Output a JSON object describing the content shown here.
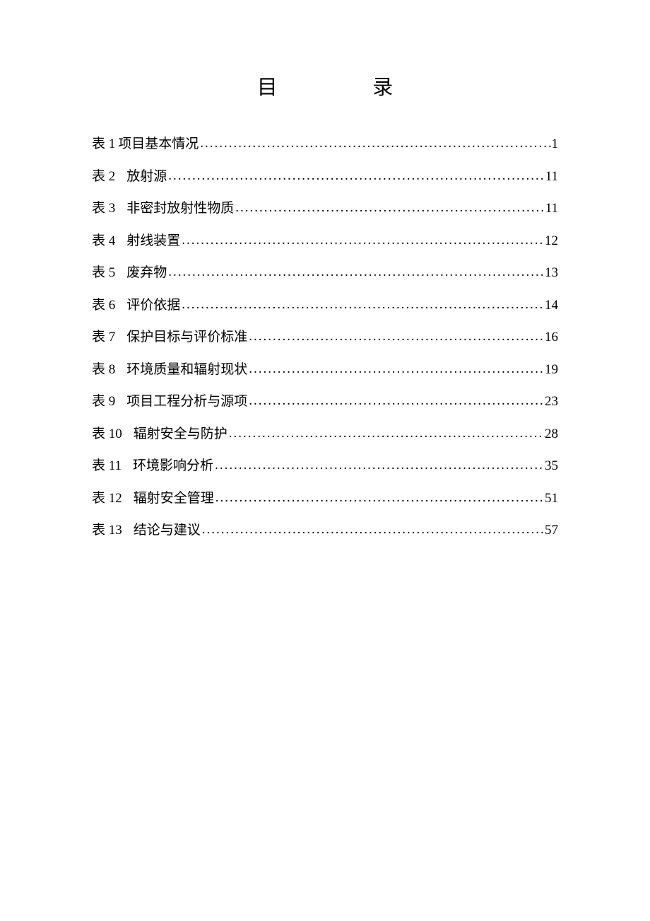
{
  "document": {
    "title_char1": "目",
    "title_char2": "录",
    "background_color": "#ffffff",
    "text_color": "#000000",
    "title_fontsize": 29,
    "entry_fontsize": 19,
    "entries": [
      {
        "label": "表 1",
        "title": "项目基本情况",
        "page": "1",
        "gap": "narrow"
      },
      {
        "label": "表 2",
        "title": "放射源",
        "page": "11",
        "gap": "wide"
      },
      {
        "label": "表 3",
        "title": "非密封放射性物质",
        "page": "11",
        "gap": "wide"
      },
      {
        "label": "表 4",
        "title": "射线装置",
        "page": "12",
        "gap": "wide"
      },
      {
        "label": "表 5",
        "title": "废弃物",
        "page": "13",
        "gap": "wide"
      },
      {
        "label": "表 6",
        "title": "评价依据",
        "page": "14",
        "gap": "wide"
      },
      {
        "label": "表 7",
        "title": "保护目标与评价标准",
        "page": "16",
        "gap": "wide"
      },
      {
        "label": "表 8",
        "title": "环境质量和辐射现状",
        "page": "19",
        "gap": "wide"
      },
      {
        "label": "表 9",
        "title": "项目工程分析与源项",
        "page": "23",
        "gap": "wide"
      },
      {
        "label": "表 10",
        "title": "辐射安全与防护",
        "page": "28",
        "gap": "wide"
      },
      {
        "label": "表 11",
        "title": "环境影响分析",
        "page": "35",
        "gap": "wide"
      },
      {
        "label": "表 12",
        "title": "辐射安全管理",
        "page": "51",
        "gap": "wide"
      },
      {
        "label": "表 13",
        "title": "结论与建议",
        "page": "57",
        "gap": "wide"
      }
    ]
  }
}
